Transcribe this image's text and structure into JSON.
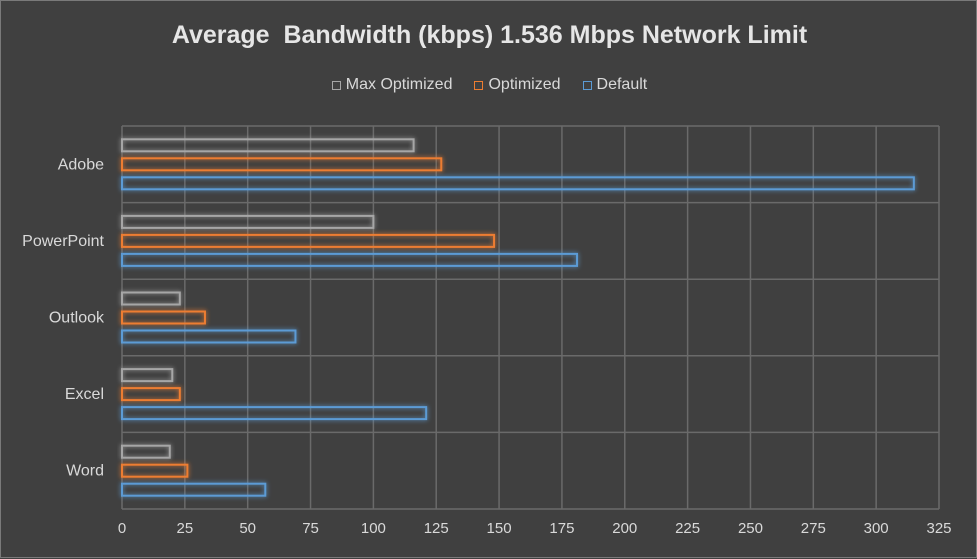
{
  "chart_data": {
    "type": "bar",
    "orientation": "horizontal",
    "title": "Average  Bandwidth (kbps) 1.536 Mbps Network Limit",
    "categories": [
      "Adobe",
      "PowerPoint",
      "Outlook",
      "Excel",
      "Word"
    ],
    "series": [
      {
        "name": "Max Optimized",
        "color": "#a6a6a6",
        "values": [
          116,
          100,
          23,
          20,
          19
        ]
      },
      {
        "name": "Optimized",
        "color": "#ed7d31",
        "values": [
          127,
          148,
          33,
          23,
          26
        ]
      },
      {
        "name": "Default",
        "color": "#5b9bd5",
        "values": [
          315,
          181,
          69,
          121,
          57
        ]
      }
    ],
    "xlim": [
      0,
      325
    ],
    "xticks": [
      0,
      25,
      50,
      75,
      100,
      125,
      150,
      175,
      200,
      225,
      250,
      275,
      300,
      325
    ],
    "grid": true,
    "legend_position": "top"
  }
}
